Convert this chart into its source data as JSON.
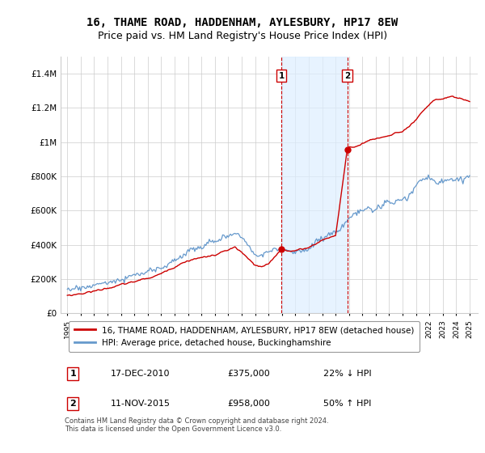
{
  "title": "16, THAME ROAD, HADDENHAM, AYLESBURY, HP17 8EW",
  "subtitle": "Price paid vs. HM Land Registry's House Price Index (HPI)",
  "title_fontsize": 10,
  "subtitle_fontsize": 9,
  "ylim": [
    0,
    1500000
  ],
  "yticks": [
    0,
    200000,
    400000,
    600000,
    800000,
    1000000,
    1200000,
    1400000
  ],
  "ytick_labels": [
    "£0",
    "£200K",
    "£400K",
    "£600K",
    "£800K",
    "£1M",
    "£1.2M",
    "£1.4M"
  ],
  "red_line_label": "16, THAME ROAD, HADDENHAM, AYLESBURY, HP17 8EW (detached house)",
  "blue_line_label": "HPI: Average price, detached house, Buckinghamshire",
  "marker1_date": 2010.962,
  "marker1_label": "1",
  "marker1_value": 375000,
  "marker1_text": "17-DEC-2010",
  "marker1_price": "£375,000",
  "marker1_hpi": "22% ↓ HPI",
  "marker2_date": 2015.876,
  "marker2_label": "2",
  "marker2_value": 958000,
  "marker2_text": "11-NOV-2015",
  "marker2_price": "£958,000",
  "marker2_hpi": "50% ↑ HPI",
  "red_color": "#cc0000",
  "blue_color": "#6699cc",
  "shade_color": "#ddeeff",
  "dashed_color": "#cc0000",
  "background_color": "#ffffff",
  "grid_color": "#cccccc",
  "footnote": "Contains HM Land Registry data © Crown copyright and database right 2024.\nThis data is licensed under the Open Government Licence v3.0."
}
